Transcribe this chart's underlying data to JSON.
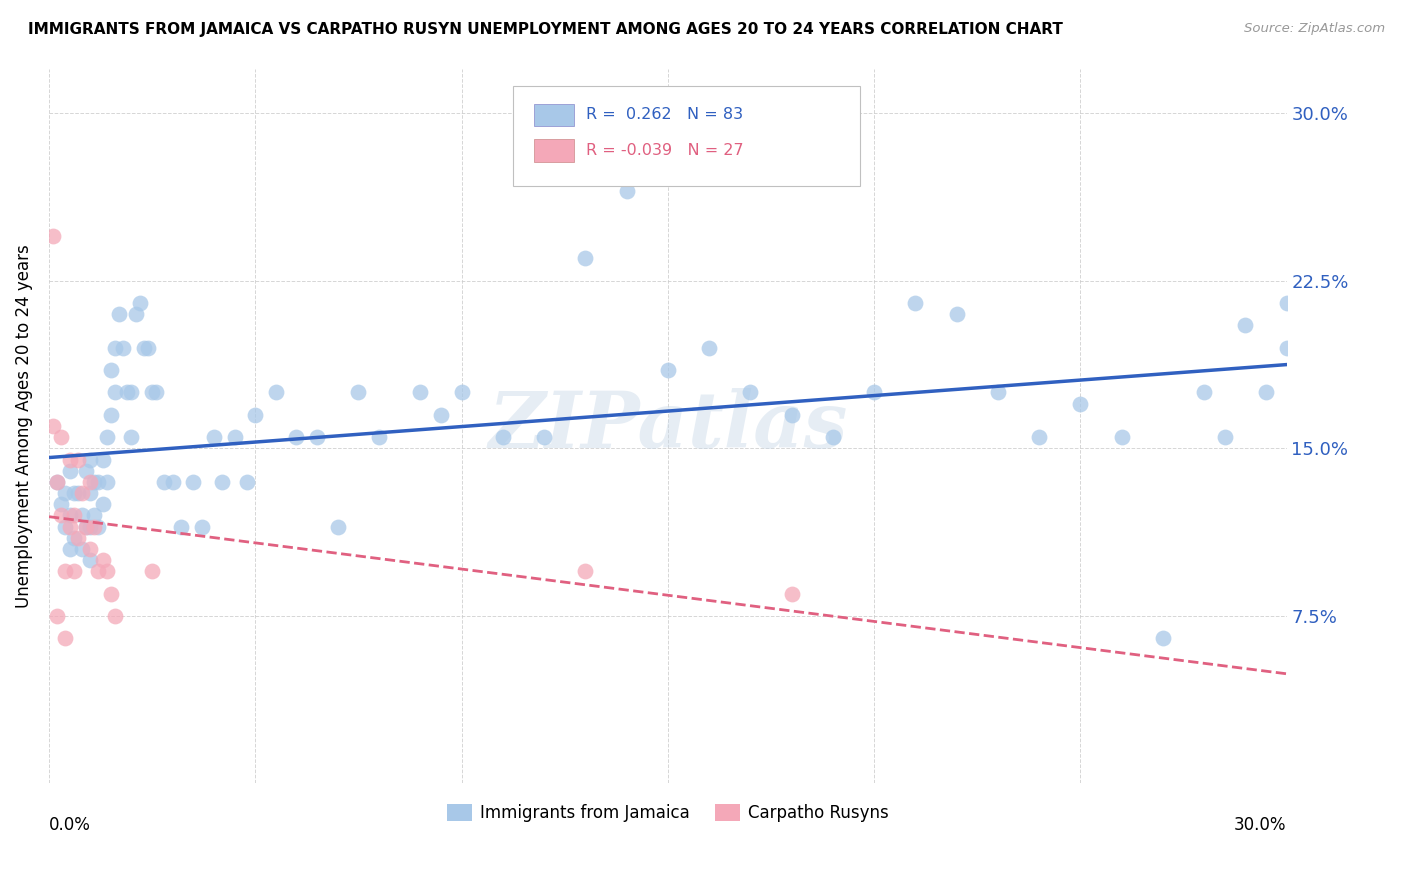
{
  "title": "IMMIGRANTS FROM JAMAICA VS CARPATHO RUSYN UNEMPLOYMENT AMONG AGES 20 TO 24 YEARS CORRELATION CHART",
  "source": "Source: ZipAtlas.com",
  "ylabel": "Unemployment Among Ages 20 to 24 years",
  "ytick_labels": [
    "7.5%",
    "15.0%",
    "22.5%",
    "30.0%"
  ],
  "ytick_vals": [
    0.075,
    0.15,
    0.225,
    0.3
  ],
  "xlim": [
    0.0,
    0.3
  ],
  "ylim": [
    0.0,
    0.32
  ],
  "legend_jamaica": "R =  0.262   N = 83",
  "legend_rusyn": "R = -0.039   N = 27",
  "jamaica_color": "#a8c8e8",
  "rusyn_color": "#f4a8b8",
  "jamaica_line_color": "#3060c0",
  "rusyn_line_color": "#e06080",
  "watermark": "ZIPatlas",
  "jamaica_x": [
    0.002,
    0.003,
    0.004,
    0.004,
    0.005,
    0.005,
    0.005,
    0.006,
    0.006,
    0.007,
    0.008,
    0.008,
    0.009,
    0.009,
    0.01,
    0.01,
    0.01,
    0.01,
    0.011,
    0.011,
    0.012,
    0.012,
    0.013,
    0.013,
    0.014,
    0.014,
    0.015,
    0.015,
    0.016,
    0.016,
    0.017,
    0.018,
    0.019,
    0.02,
    0.02,
    0.021,
    0.022,
    0.023,
    0.024,
    0.025,
    0.026,
    0.028,
    0.03,
    0.032,
    0.035,
    0.037,
    0.04,
    0.042,
    0.045,
    0.048,
    0.05,
    0.055,
    0.06,
    0.065,
    0.07,
    0.075,
    0.08,
    0.09,
    0.095,
    0.1,
    0.11,
    0.12,
    0.13,
    0.14,
    0.15,
    0.16,
    0.17,
    0.18,
    0.19,
    0.2,
    0.21,
    0.22,
    0.23,
    0.24,
    0.25,
    0.26,
    0.27,
    0.28,
    0.285,
    0.29,
    0.295,
    0.3,
    0.3
  ],
  "jamaica_y": [
    0.135,
    0.125,
    0.13,
    0.115,
    0.14,
    0.12,
    0.105,
    0.13,
    0.11,
    0.13,
    0.12,
    0.105,
    0.14,
    0.115,
    0.145,
    0.13,
    0.115,
    0.1,
    0.135,
    0.12,
    0.135,
    0.115,
    0.145,
    0.125,
    0.155,
    0.135,
    0.185,
    0.165,
    0.195,
    0.175,
    0.21,
    0.195,
    0.175,
    0.175,
    0.155,
    0.21,
    0.215,
    0.195,
    0.195,
    0.175,
    0.175,
    0.135,
    0.135,
    0.115,
    0.135,
    0.115,
    0.155,
    0.135,
    0.155,
    0.135,
    0.165,
    0.175,
    0.155,
    0.155,
    0.115,
    0.175,
    0.155,
    0.175,
    0.165,
    0.175,
    0.155,
    0.155,
    0.235,
    0.265,
    0.185,
    0.195,
    0.175,
    0.165,
    0.155,
    0.175,
    0.215,
    0.21,
    0.175,
    0.155,
    0.17,
    0.155,
    0.065,
    0.175,
    0.155,
    0.205,
    0.175,
    0.215,
    0.195
  ],
  "rusyn_x": [
    0.001,
    0.001,
    0.002,
    0.002,
    0.003,
    0.003,
    0.004,
    0.004,
    0.005,
    0.005,
    0.006,
    0.006,
    0.007,
    0.007,
    0.008,
    0.009,
    0.01,
    0.01,
    0.011,
    0.012,
    0.013,
    0.014,
    0.015,
    0.016,
    0.025,
    0.13,
    0.18
  ],
  "rusyn_y": [
    0.245,
    0.16,
    0.135,
    0.075,
    0.155,
    0.12,
    0.095,
    0.065,
    0.145,
    0.115,
    0.12,
    0.095,
    0.145,
    0.11,
    0.13,
    0.115,
    0.135,
    0.105,
    0.115,
    0.095,
    0.1,
    0.095,
    0.085,
    0.075,
    0.095,
    0.095,
    0.085
  ]
}
